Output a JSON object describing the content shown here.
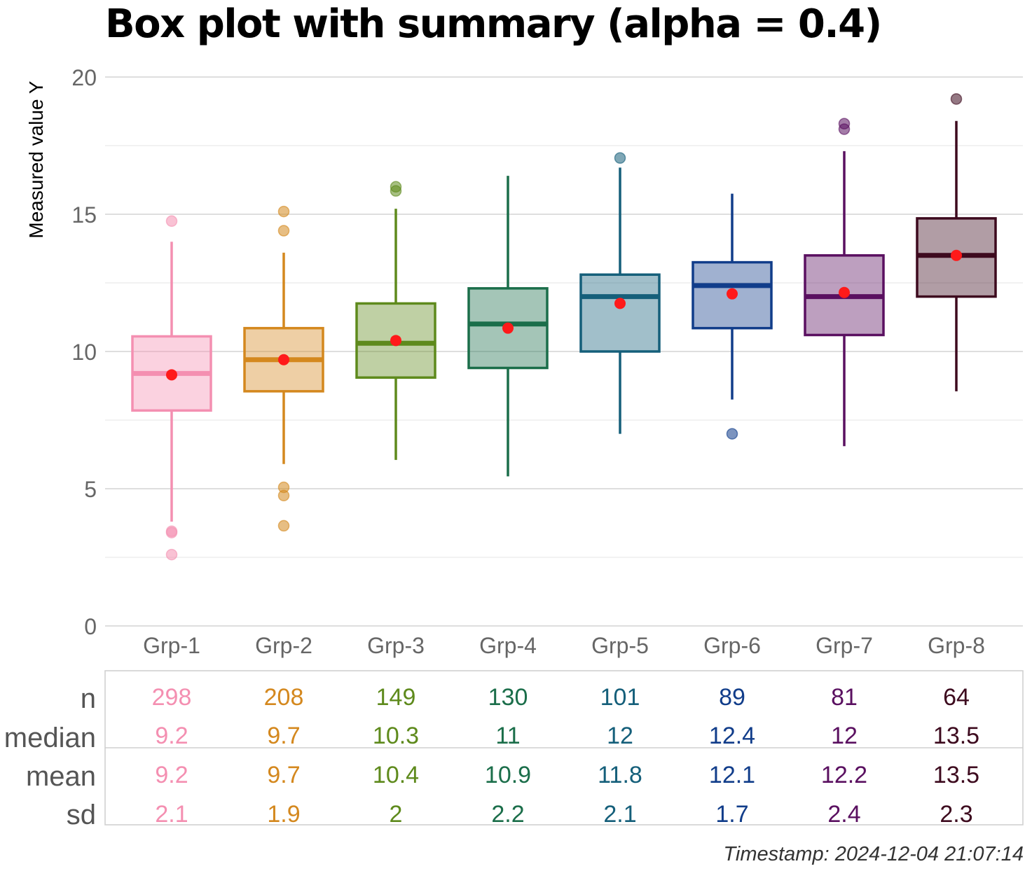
{
  "title": "Box plot with summary (alpha = 0.4)",
  "timestamp": "Timestamp: 2024-12-04 21:07:14",
  "chart_data": {
    "type": "box",
    "title": "Box plot with summary (alpha = 0.4)",
    "xlabel": "",
    "ylabel": "Measured value Y",
    "ylim": [
      0,
      20
    ],
    "yticks": [
      0,
      5,
      10,
      15,
      20
    ],
    "grid": true,
    "alpha": 0.4,
    "mean_marker_color": "#ff1a1a",
    "categories": [
      "Grp-1",
      "Grp-2",
      "Grp-3",
      "Grp-4",
      "Grp-5",
      "Grp-6",
      "Grp-7",
      "Grp-8"
    ],
    "colors": [
      "#f48fb1",
      "#d4881e",
      "#5e8a1c",
      "#1b6e4a",
      "#155f7a",
      "#113d8a",
      "#5a1060",
      "#3d0a1e"
    ],
    "boxes": [
      {
        "q1": 7.85,
        "median": 9.2,
        "q3": 10.55,
        "whisker_low": 3.8,
        "whisker_high": 14.0,
        "mean": 9.15,
        "outliers": [
          14.75,
          3.45,
          3.4,
          2.6
        ]
      },
      {
        "q1": 8.55,
        "median": 9.7,
        "q3": 10.85,
        "whisker_low": 5.9,
        "whisker_high": 13.6,
        "mean": 9.7,
        "outliers": [
          15.1,
          14.4,
          5.05,
          4.75,
          3.65
        ]
      },
      {
        "q1": 9.05,
        "median": 10.3,
        "q3": 11.75,
        "whisker_low": 6.05,
        "whisker_high": 15.2,
        "mean": 10.4,
        "outliers": [
          16.0,
          15.85
        ]
      },
      {
        "q1": 9.4,
        "median": 11.0,
        "q3": 12.3,
        "whisker_low": 5.45,
        "whisker_high": 16.4,
        "mean": 10.85,
        "outliers": []
      },
      {
        "q1": 10.0,
        "median": 12.0,
        "q3": 12.8,
        "whisker_low": 7.0,
        "whisker_high": 16.7,
        "mean": 11.75,
        "outliers": [
          17.05
        ]
      },
      {
        "q1": 10.85,
        "median": 12.4,
        "q3": 13.25,
        "whisker_low": 8.25,
        "whisker_high": 15.75,
        "mean": 12.1,
        "outliers": [
          7.0
        ]
      },
      {
        "q1": 10.6,
        "median": 12.0,
        "q3": 13.5,
        "whisker_low": 6.55,
        "whisker_high": 17.3,
        "mean": 12.15,
        "outliers": [
          18.3,
          18.1
        ]
      },
      {
        "q1": 12.0,
        "median": 13.5,
        "q3": 14.85,
        "whisker_low": 8.55,
        "whisker_high": 18.4,
        "mean": 13.5,
        "outliers": [
          19.2
        ]
      }
    ],
    "summary_table": {
      "row_labels": [
        "n",
        "median",
        "mean",
        "sd"
      ],
      "rows": {
        "n": [
          "298",
          "208",
          "149",
          "130",
          "101",
          "89",
          "81",
          "64"
        ],
        "median": [
          "9.2",
          "9.7",
          "10.3",
          "11",
          "12",
          "12.4",
          "12",
          "13.5"
        ],
        "mean": [
          "9.2",
          "9.7",
          "10.4",
          "10.9",
          "11.8",
          "12.1",
          "12.2",
          "13.5"
        ],
        "sd": [
          "2.1",
          "1.9",
          "2",
          "2.2",
          "2.1",
          "1.7",
          "2.4",
          "2.3"
        ]
      }
    }
  }
}
